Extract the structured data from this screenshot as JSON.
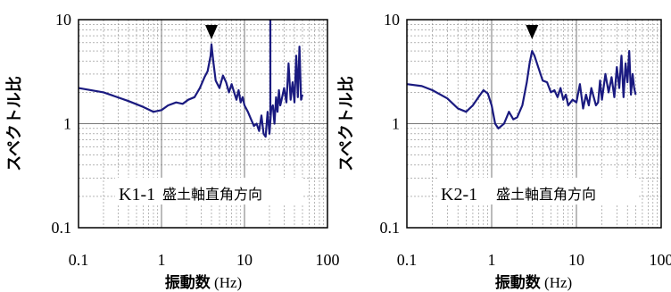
{
  "chart_data": [
    {
      "type": "line",
      "xscale": "log",
      "yscale": "log",
      "xlim": [
        0.1,
        100
      ],
      "ylim": [
        0.1,
        10
      ],
      "xlabel": "振動数",
      "xunit": "(Hz)",
      "ylabel": "スペクトル比",
      "panel_label": "K1-1",
      "annotation": "盛土軸直角方向",
      "peak_marker_x": 4.0,
      "x_ticks": [
        "0.1",
        "1",
        "10",
        "100"
      ],
      "y_ticks": [
        "0.1",
        "1",
        "10"
      ],
      "line_color": "#1a1a80",
      "series": [
        {
          "x": [
            0.1,
            0.2,
            0.4,
            0.6,
            0.8,
            1.0,
            1.2,
            1.5,
            1.8,
            2.1,
            2.5,
            2.9,
            3.3,
            3.6,
            3.9,
            4.0,
            4.2,
            4.5,
            5.0,
            5.5,
            6.0,
            6.5,
            7.0,
            7.5,
            8.0,
            8.5,
            9.0,
            9.5,
            10,
            11,
            12,
            13,
            14,
            15,
            16,
            17,
            18,
            19,
            20,
            21,
            22,
            23,
            24,
            25,
            26,
            27,
            28,
            30,
            32,
            34,
            36,
            38,
            40,
            42,
            44,
            46,
            48,
            50
          ],
          "y": [
            2.2,
            2.0,
            1.65,
            1.45,
            1.3,
            1.35,
            1.5,
            1.6,
            1.55,
            1.7,
            1.8,
            2.2,
            2.8,
            3.2,
            4.5,
            5.8,
            4.0,
            2.6,
            2.2,
            2.9,
            2.5,
            2.0,
            2.4,
            2.0,
            1.7,
            2.1,
            1.6,
            1.8,
            1.5,
            1.3,
            1.1,
            0.95,
            1.0,
            0.85,
            1.2,
            0.8,
            0.75,
            1.3,
            0.8,
            1.4,
            1.5,
            1.0,
            1.8,
            1.3,
            2.1,
            1.5,
            1.7,
            2.2,
            1.6,
            3.8,
            1.7,
            2.5,
            1.6,
            4.5,
            1.8,
            5.5,
            1.7,
            1.9
          ]
        },
        {
          "x": [
            20.5,
            20.5
          ],
          "y": [
            1.2,
            10
          ]
        }
      ]
    },
    {
      "type": "line",
      "xscale": "log",
      "yscale": "log",
      "xlim": [
        0.1,
        100
      ],
      "ylim": [
        0.1,
        10
      ],
      "xlabel": "振動数",
      "xunit": "(Hz)",
      "ylabel": "スペクトル比",
      "panel_label": "K2-1",
      "annotation": "盛土軸直角方向",
      "peak_marker_x": 3.0,
      "x_ticks": [
        "0.1",
        "1",
        "10",
        "100"
      ],
      "y_ticks": [
        "0.1",
        "1",
        "10"
      ],
      "line_color": "#1a1a80",
      "series": [
        {
          "x": [
            0.1,
            0.15,
            0.2,
            0.3,
            0.4,
            0.5,
            0.6,
            0.7,
            0.8,
            0.9,
            1.0,
            1.1,
            1.2,
            1.4,
            1.6,
            1.8,
            2.0,
            2.3,
            2.6,
            2.8,
            3.0,
            3.2,
            3.5,
            4.0,
            4.5,
            5.0,
            5.5,
            6.0,
            6.5,
            7.0,
            7.5,
            8.0,
            9.0,
            10,
            11,
            12,
            13,
            14,
            15,
            16,
            17,
            18,
            19,
            20,
            22,
            24,
            26,
            28,
            30,
            32,
            34,
            36,
            38,
            40,
            42,
            44,
            46,
            48,
            50
          ],
          "y": [
            2.4,
            2.3,
            2.1,
            1.75,
            1.4,
            1.3,
            1.5,
            1.8,
            2.1,
            1.95,
            1.5,
            1.0,
            0.9,
            1.0,
            1.3,
            1.1,
            1.15,
            1.5,
            2.5,
            3.8,
            5.0,
            4.5,
            3.6,
            2.6,
            2.5,
            2.0,
            2.1,
            1.8,
            2.2,
            1.7,
            1.9,
            1.5,
            1.7,
            1.6,
            2.4,
            1.4,
            1.9,
            1.5,
            2.2,
            1.8,
            1.5,
            1.6,
            2.6,
            1.7,
            3.0,
            2.0,
            2.8,
            1.8,
            3.5,
            2.2,
            4.5,
            1.8,
            3.8,
            2.5,
            5.0,
            1.9,
            3.0,
            2.2,
            1.9
          ]
        }
      ]
    }
  ]
}
